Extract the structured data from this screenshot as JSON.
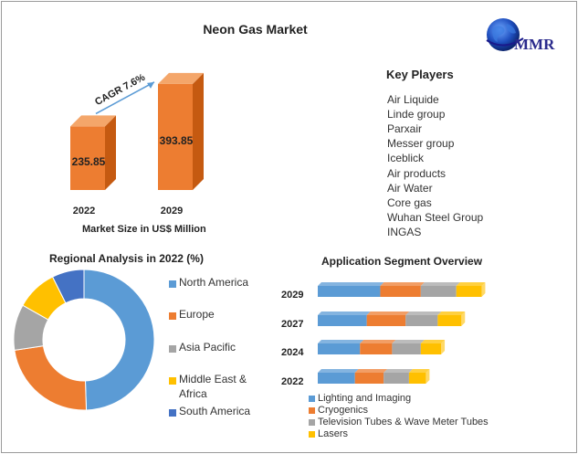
{
  "logo": {
    "text": "MMR"
  },
  "chart_data": [
    {
      "type": "bar",
      "title": "Neon Gas Market",
      "xlabel": "Market Size in US$ Million",
      "categories": [
        "2022",
        "2029"
      ],
      "values": [
        235.85,
        393.85
      ],
      "value_labels": [
        "235.85",
        "393.85"
      ],
      "annotation": "CAGR 7.6%",
      "colors": {
        "front": "#ed7d31",
        "side": "#c55a11",
        "top": "#f4a66a",
        "arrow": "#5b9bd5"
      }
    },
    {
      "type": "pie",
      "title": "Regional Analysis in 2022 (%)",
      "labels": [
        "North America",
        "Europe",
        "Asia Pacific",
        "Middle East & Africa",
        "South America"
      ],
      "label_lines": [
        [
          "North America"
        ],
        [
          "Europe"
        ],
        [
          "Asia Pacific"
        ],
        [
          "Middle East &",
          "Africa"
        ],
        [
          "South America"
        ]
      ],
      "values": [
        47,
        22,
        10,
        9,
        7
      ],
      "colors": [
        "#5b9bd5",
        "#ed7d31",
        "#a5a5a5",
        "#ffc000",
        "#4472c4"
      ],
      "donut": true,
      "legend_position": "right"
    },
    {
      "type": "bar",
      "orientation": "horizontal",
      "stacked": true,
      "title": "Application Segment Overview",
      "categories": [
        "2029",
        "2027",
        "2024",
        "2022"
      ],
      "series": [
        {
          "name": "Lighting and Imaging",
          "values": [
            37,
            29,
            25,
            22
          ],
          "color": "#5b9bd5"
        },
        {
          "name": "Cryogenics",
          "values": [
            24,
            23,
            19,
            17
          ],
          "color": "#ed7d31"
        },
        {
          "name": "Television Tubes & Wave Meter Tubes",
          "values": [
            21,
            19,
            17,
            15
          ],
          "color": "#a5a5a5"
        },
        {
          "name": "Lasers",
          "values": [
            15,
            14,
            12,
            10
          ],
          "color": "#ffc000"
        }
      ],
      "legend_position": "bottom"
    }
  ],
  "key_players": {
    "title": "Key Players",
    "items": [
      "Air Liquide",
      "Linde group",
      "Parxair",
      "Messer group",
      "Iceblick",
      "Air products",
      "Air Water",
      "Core gas",
      "Wuhan Steel Group",
      "INGAS"
    ]
  }
}
